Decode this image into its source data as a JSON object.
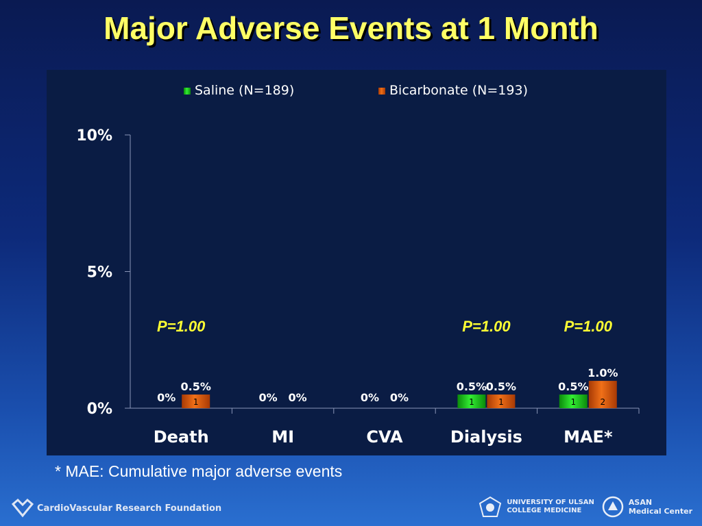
{
  "title": "Major Adverse Events at 1 Month",
  "footnote": "* MAE: Cumulative major adverse events",
  "logos": {
    "left": "CardioVascular Research Foundation",
    "ulsan_line1": "UNIVERSITY OF ULSAN",
    "ulsan_line2": "COLLEGE MEDICINE",
    "asan_line1": "ASAN",
    "asan_line2": "Medical Center"
  },
  "colors": {
    "saline": "#22cc22",
    "bicarbonate": "#e05a10",
    "pvalue": "#ffff33"
  },
  "chart_data": {
    "type": "bar",
    "categories": [
      "Death",
      "MI",
      "CVA",
      "Dialysis",
      "MAE*"
    ],
    "series": [
      {
        "name": "Saline (N=189)",
        "values": [
          0,
          0,
          0,
          0.5,
          0.5
        ],
        "value_labels": [
          "0%",
          "0%",
          "0%",
          "0.5%",
          "0.5%"
        ],
        "counts": [
          "",
          "",
          "",
          "1",
          "1"
        ]
      },
      {
        "name": "Bicarbonate (N=193)",
        "values": [
          0.5,
          0,
          0,
          0.5,
          1.0
        ],
        "value_labels": [
          "0.5%",
          "0%",
          "0%",
          "0.5%",
          "1.0%"
        ],
        "counts": [
          "1",
          "",
          "",
          "1",
          "2"
        ]
      }
    ],
    "p_values": [
      "P=1.00",
      "",
      "",
      "P=1.00",
      "P=1.00"
    ],
    "ylim": [
      0,
      10
    ],
    "yticks": [
      0,
      5,
      10
    ],
    "ytick_labels": [
      "0%",
      "5%",
      "10%"
    ],
    "legend": "top"
  }
}
